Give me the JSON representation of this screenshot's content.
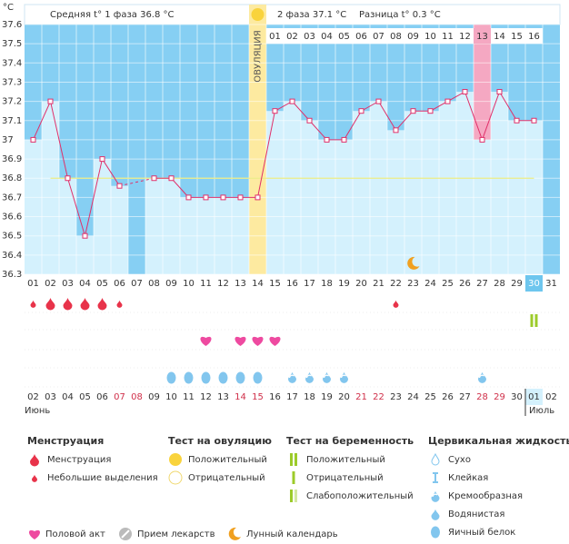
{
  "chart_data": {
    "type": "line",
    "unit": "°C",
    "header": {
      "phase1": "Средняя t° 1 фаза 36.8 °C",
      "phase2": "2 фаза 37.1 °C",
      "difference": "Разница t° 0.3 °C"
    },
    "ovulation_label": "ОВУЛЯЦИЯ",
    "ovulation_day": "14",
    "marked_day": "27",
    "phase2_start": "15",
    "phase2_days": [
      "01",
      "02",
      "03",
      "04",
      "05",
      "06",
      "07",
      "08",
      "09",
      "10",
      "11",
      "12",
      "13",
      "14",
      "15",
      "16"
    ],
    "categories": [
      "01",
      "02",
      "03",
      "04",
      "05",
      "06",
      "07",
      "08",
      "09",
      "10",
      "11",
      "12",
      "13",
      "14",
      "15",
      "16",
      "17",
      "18",
      "19",
      "20",
      "21",
      "22",
      "23",
      "24",
      "25",
      "26",
      "27",
      "28",
      "29",
      "30",
      "31"
    ],
    "values": [
      37.0,
      37.2,
      36.8,
      36.5,
      36.9,
      36.76,
      null,
      36.8,
      36.8,
      36.7,
      36.7,
      36.7,
      36.7,
      36.7,
      37.15,
      37.2,
      37.1,
      37.0,
      37.0,
      37.15,
      37.2,
      37.05,
      37.15,
      37.15,
      37.2,
      37.25,
      37.0,
      37.25,
      37.1,
      37.1,
      null
    ],
    "line_color": "#e0306a",
    "bar_color": "#d4f1fd",
    "background_color": "#86cff3",
    "ylim": [
      36.3,
      37.6
    ],
    "yticks": [
      36.3,
      36.4,
      36.5,
      36.6,
      36.7,
      36.8,
      36.9,
      37,
      37.1,
      37.2,
      37.3,
      37.4,
      37.5,
      37.6
    ],
    "coverline": 36.8,
    "events": {
      "menstruation": [
        "light",
        "heavy",
        "heavy",
        "heavy",
        "heavy",
        "light",
        null,
        null,
        null,
        null,
        null,
        null,
        null,
        null,
        null,
        null,
        null,
        null,
        null,
        null,
        null,
        "light",
        null,
        null,
        null,
        null,
        null,
        null,
        null,
        null,
        null
      ],
      "pregnancy_test": [
        null,
        null,
        null,
        null,
        null,
        null,
        null,
        null,
        null,
        null,
        null,
        null,
        null,
        null,
        null,
        null,
        null,
        null,
        null,
        null,
        null,
        null,
        null,
        null,
        null,
        null,
        null,
        null,
        null,
        "positive",
        null
      ],
      "intercourse": [
        false,
        false,
        false,
        false,
        false,
        false,
        false,
        false,
        false,
        false,
        true,
        false,
        true,
        true,
        true,
        false,
        false,
        false,
        false,
        false,
        false,
        false,
        false,
        false,
        false,
        false,
        false,
        false,
        false,
        false,
        false
      ],
      "moon": [
        false,
        false,
        false,
        false,
        false,
        false,
        false,
        false,
        false,
        false,
        false,
        false,
        false,
        false,
        false,
        false,
        false,
        false,
        false,
        false,
        false,
        false,
        true,
        false,
        false,
        false,
        false,
        false,
        false,
        false,
        false
      ],
      "cervical_fluid": [
        null,
        null,
        null,
        null,
        null,
        null,
        null,
        null,
        "egg_white",
        "egg_white",
        "egg_white",
        "egg_white",
        "egg_white",
        "egg_white",
        null,
        "creamy",
        "creamy",
        "creamy",
        "creamy",
        null,
        null,
        null,
        null,
        null,
        null,
        null,
        "creamy",
        null,
        null,
        null,
        null
      ]
    },
    "dates": [
      "02",
      "03",
      "04",
      "05",
      "06",
      "07",
      "08",
      "09",
      "10",
      "11",
      "12",
      "13",
      "14",
      "15",
      "16",
      "17",
      "18",
      "19",
      "20",
      "21",
      "22",
      "23",
      "24",
      "25",
      "26",
      "27",
      "28",
      "29",
      "30",
      "01",
      "02"
    ],
    "date_colors": [
      "#333",
      "#333",
      "#333",
      "#333",
      "#333",
      "#d0304a",
      "#d0304a",
      "#333",
      "#333",
      "#333",
      "#333",
      "#333",
      "#d0304a",
      "#d0304a",
      "#333",
      "#333",
      "#333",
      "#333",
      "#333",
      "#d0304a",
      "#d0304a",
      "#333",
      "#333",
      "#333",
      "#333",
      "#333",
      "#d0304a",
      "#d0304a",
      "#333",
      "#333",
      "#333"
    ],
    "months": [
      "Июнь",
      "Июль"
    ],
    "legend": {
      "menstruation": {
        "title": "Менструация",
        "items": [
          "Менструация",
          "Небольшие выделения"
        ]
      },
      "ovulation_test": {
        "title": "Тест на овуляцию",
        "items": [
          "Положительный",
          "Отрицательный"
        ]
      },
      "pregnancy_test": {
        "title": "Тест на беременность",
        "items": [
          "Положительный",
          "Отрицательный",
          "Слабоположительный"
        ]
      },
      "cervical_fluid": {
        "title": "Цервикальная жидкость",
        "items": [
          "Сухо",
          "Клейкая",
          "Кремообразная",
          "Водянистая",
          "Яичный белок"
        ]
      },
      "other": [
        "Половой акт",
        "Прием лекарств",
        "Лунный календарь"
      ]
    }
  }
}
